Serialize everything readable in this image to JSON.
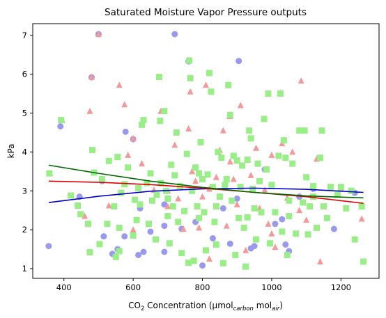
{
  "chart_data": {
    "type": "scatter",
    "title": "Saturated Moisture Vapor Pressure outputs",
    "xlabel": {
      "pre": "CO",
      "sub1": "2",
      "mid": " Concentration (µmol",
      "sub2": "carbon",
      "mid2": " mol",
      "sub3": "air",
      "post": ")"
    },
    "ylabel": "kPa",
    "xlim": [
      310,
      1310
    ],
    "ylim": [
      0.75,
      7.3
    ],
    "xticks": [
      400,
      600,
      800,
      1000,
      1200
    ],
    "yticks": [
      1,
      2,
      3,
      4,
      5,
      6,
      7
    ],
    "grid": false,
    "legend": "none",
    "colors": {
      "blue_series": "#9999ee",
      "red_series": "#f4999a",
      "green_series": "#99ee88",
      "blue_fit": "#0000cc",
      "red_fit": "#dd0000",
      "green_fit": "#006600"
    },
    "series": [
      {
        "marker": "circle",
        "color": "#9999ee",
        "points": [
          [
            356,
            1.58
          ],
          [
            390,
            4.66
          ],
          [
            445,
            2.85
          ],
          [
            500,
            7.03
          ],
          [
            515,
            1.83
          ],
          [
            540,
            1.38
          ],
          [
            555,
            1.5
          ],
          [
            575,
            1.83
          ],
          [
            578,
            4.52
          ],
          [
            600,
            4.33
          ],
          [
            615,
            1.35
          ],
          [
            630,
            1.43
          ],
          [
            650,
            1.95
          ],
          [
            690,
            1.43
          ],
          [
            690,
            2.1
          ],
          [
            720,
            7.03
          ],
          [
            740,
            2.02
          ],
          [
            760,
            6.33
          ],
          [
            800,
            1.08
          ],
          [
            830,
            1.78
          ],
          [
            860,
            2.55
          ],
          [
            880,
            1.64
          ],
          [
            900,
            2.8
          ],
          [
            905,
            6.34
          ],
          [
            950,
            1.58
          ],
          [
            1010,
            2.15
          ],
          [
            1030,
            2.27
          ],
          [
            1050,
            1.45
          ],
          [
            1080,
            2.85
          ],
          [
            1180,
            2.02
          ],
          [
            1240,
            2.95
          ],
          [
            510,
            3.25
          ],
          [
            690,
            2.65
          ],
          [
            940,
            1.52
          ],
          [
            1040,
            1.62
          ],
          [
            620,
            2.55
          ],
          [
            780,
            2.2
          ],
          [
            980,
            3.55
          ],
          [
            1120,
            3.05
          ],
          [
            480,
            5.92
          ]
        ]
      },
      {
        "marker": "triangle",
        "color": "#f4999a",
        "points": [
          [
            360,
            3.45
          ],
          [
            395,
            4.82
          ],
          [
            460,
            2.35
          ],
          [
            475,
            5.05
          ],
          [
            480,
            5.93
          ],
          [
            500,
            7.03
          ],
          [
            530,
            2.62
          ],
          [
            560,
            5.72
          ],
          [
            575,
            5.22
          ],
          [
            585,
            3.92
          ],
          [
            600,
            4.35
          ],
          [
            625,
            3.7
          ],
          [
            660,
            3.02
          ],
          [
            680,
            5.05
          ],
          [
            700,
            2.6
          ],
          [
            720,
            4.18
          ],
          [
            730,
            2.8
          ],
          [
            745,
            2.02
          ],
          [
            760,
            6.35
          ],
          [
            765,
            5.55
          ],
          [
            770,
            3.5
          ],
          [
            780,
            3.25
          ],
          [
            790,
            2.05
          ],
          [
            800,
            2.85
          ],
          [
            810,
            5.72
          ],
          [
            820,
            3.05
          ],
          [
            840,
            3.35
          ],
          [
            850,
            4.05
          ],
          [
            860,
            4.55
          ],
          [
            870,
            2.1
          ],
          [
            880,
            4.92
          ],
          [
            890,
            3.3
          ],
          [
            900,
            2.65
          ],
          [
            910,
            5.2
          ],
          [
            925,
            1.47
          ],
          [
            940,
            3.4
          ],
          [
            955,
            4.1
          ],
          [
            965,
            2.55
          ],
          [
            980,
            3.02
          ],
          [
            990,
            2.15
          ],
          [
            1000,
            3.92
          ],
          [
            1010,
            1.55
          ],
          [
            1025,
            5.52
          ],
          [
            1030,
            4.22
          ],
          [
            1045,
            2.82
          ],
          [
            1060,
            4.0
          ],
          [
            1080,
            2.5
          ],
          [
            1085,
            5.83
          ],
          [
            1100,
            2.25
          ],
          [
            1130,
            3.82
          ],
          [
            1140,
            1.18
          ],
          [
            1200,
            3.07
          ],
          [
            1260,
            2.28
          ],
          [
            700,
            3.0
          ],
          [
            600,
            2.0
          ],
          [
            820,
            1.25
          ],
          [
            650,
            3.45
          ],
          [
            760,
            4.6
          ],
          [
            880,
            3.75
          ],
          [
            1000,
            1.9
          ]
        ]
      },
      {
        "marker": "square",
        "color": "#99ee88",
        "points": [
          [
            358,
            3.45
          ],
          [
            392,
            4.82
          ],
          [
            420,
            2.88
          ],
          [
            440,
            2.62
          ],
          [
            448,
            2.4
          ],
          [
            470,
            2.15
          ],
          [
            475,
            1.42
          ],
          [
            482,
            4.05
          ],
          [
            487,
            3.47
          ],
          [
            503,
            1.63
          ],
          [
            510,
            3.3
          ],
          [
            525,
            2.15
          ],
          [
            530,
            3.77
          ],
          [
            545,
            2.6
          ],
          [
            550,
            1.3
          ],
          [
            555,
            3.87
          ],
          [
            560,
            1.45
          ],
          [
            565,
            2.95
          ],
          [
            575,
            3.17
          ],
          [
            585,
            3.6
          ],
          [
            600,
            1.85
          ],
          [
            605,
            2.77
          ],
          [
            610,
            2.25
          ],
          [
            615,
            3.07
          ],
          [
            625,
            4.7
          ],
          [
            630,
            4.82
          ],
          [
            640,
            3.2
          ],
          [
            645,
            2.15
          ],
          [
            650,
            3.45
          ],
          [
            655,
            2.75
          ],
          [
            665,
            1.75
          ],
          [
            668,
            2.9
          ],
          [
            675,
            5.93
          ],
          [
            678,
            4.8
          ],
          [
            690,
            5.05
          ],
          [
            695,
            3.0
          ],
          [
            700,
            2.35
          ],
          [
            705,
            1.65
          ],
          [
            710,
            3.67
          ],
          [
            715,
            2.6
          ],
          [
            720,
            3.4
          ],
          [
            725,
            4.5
          ],
          [
            730,
            2.2
          ],
          [
            735,
            3.12
          ],
          [
            740,
            1.4
          ],
          [
            748,
            2.48
          ],
          [
            755,
            3.95
          ],
          [
            760,
            1.15
          ],
          [
            762,
            6.35
          ],
          [
            765,
            5.9
          ],
          [
            770,
            3.0
          ],
          [
            775,
            1.2
          ],
          [
            780,
            3.6
          ],
          [
            785,
            2.6
          ],
          [
            790,
            3.45
          ],
          [
            795,
            4.25
          ],
          [
            800,
            3.3
          ],
          [
            805,
            2.45
          ],
          [
            810,
            1.47
          ],
          [
            815,
            3.42
          ],
          [
            820,
            6.03
          ],
          [
            825,
            5.55
          ],
          [
            830,
            3.1
          ],
          [
            835,
            2.2
          ],
          [
            840,
            1.62
          ],
          [
            845,
            4.0
          ],
          [
            850,
            2.85
          ],
          [
            855,
            3.85
          ],
          [
            860,
            1.14
          ],
          [
            865,
            3.15
          ],
          [
            870,
            3.3
          ],
          [
            875,
            5.72
          ],
          [
            880,
            4.95
          ],
          [
            885,
            2.75
          ],
          [
            890,
            3.9
          ],
          [
            895,
            1.35
          ],
          [
            900,
            3.78
          ],
          [
            905,
            2.3
          ],
          [
            910,
            3.1
          ],
          [
            915,
            3.65
          ],
          [
            920,
            2.05
          ],
          [
            925,
            1.05
          ],
          [
            930,
            2.32
          ],
          [
            935,
            4.55
          ],
          [
            940,
            4.35
          ],
          [
            945,
            3.05
          ],
          [
            950,
            2.55
          ],
          [
            955,
            1.75
          ],
          [
            960,
            3.7
          ],
          [
            965,
            3.25
          ],
          [
            970,
            2.45
          ],
          [
            978,
            4.85
          ],
          [
            985,
            3.55
          ],
          [
            990,
            5.5
          ],
          [
            995,
            1.65
          ],
          [
            1000,
            3.15
          ],
          [
            1010,
            2.45
          ],
          [
            1020,
            3.9
          ],
          [
            1025,
            5.5
          ],
          [
            1030,
            1.95
          ],
          [
            1035,
            4.3
          ],
          [
            1040,
            3.85
          ],
          [
            1045,
            1.35
          ],
          [
            1050,
            2.75
          ],
          [
            1060,
            3.7
          ],
          [
            1070,
            1.9
          ],
          [
            1080,
            4.55
          ],
          [
            1090,
            2.7
          ],
          [
            1095,
            4.55
          ],
          [
            1100,
            3.35
          ],
          [
            1105,
            1.88
          ],
          [
            1110,
            2.6
          ],
          [
            1120,
            3.12
          ],
          [
            1130,
            2.05
          ],
          [
            1140,
            3.85
          ],
          [
            1145,
            4.55
          ],
          [
            1150,
            2.6
          ],
          [
            1160,
            2.3
          ],
          [
            1170,
            3.1
          ],
          [
            1190,
            2.9
          ],
          [
            1200,
            3.1
          ],
          [
            1215,
            2.55
          ],
          [
            1240,
            1.75
          ],
          [
            1265,
            1.18
          ],
          [
            1260,
            2.6
          ],
          [
            1230,
            3.0
          ],
          [
            1120,
            2.85
          ],
          [
            560,
            2.05
          ],
          [
            620,
            2.65
          ],
          [
            700,
            2.8
          ],
          [
            840,
            2.6
          ],
          [
            930,
            3.8
          ],
          [
            1050,
            2.35
          ],
          [
            680,
            3.2
          ],
          [
            790,
            2.3
          ]
        ]
      }
    ],
    "fits": [
      {
        "color": "#0000cc",
        "x": [
          356,
          500,
          650,
          800,
          950,
          1100,
          1265
        ],
        "y": [
          2.7,
          2.86,
          2.99,
          3.05,
          3.07,
          3.04,
          2.96
        ]
      },
      {
        "color": "#dd0000",
        "x": [
          356,
          500,
          650,
          800,
          950,
          1100,
          1265
        ],
        "y": [
          3.25,
          3.22,
          3.16,
          3.07,
          2.96,
          2.85,
          2.68
        ]
      },
      {
        "color": "#006600",
        "x": [
          356,
          500,
          650,
          800,
          950,
          1100,
          1265
        ],
        "y": [
          3.66,
          3.45,
          3.25,
          3.09,
          2.96,
          2.87,
          2.82
        ]
      }
    ]
  }
}
